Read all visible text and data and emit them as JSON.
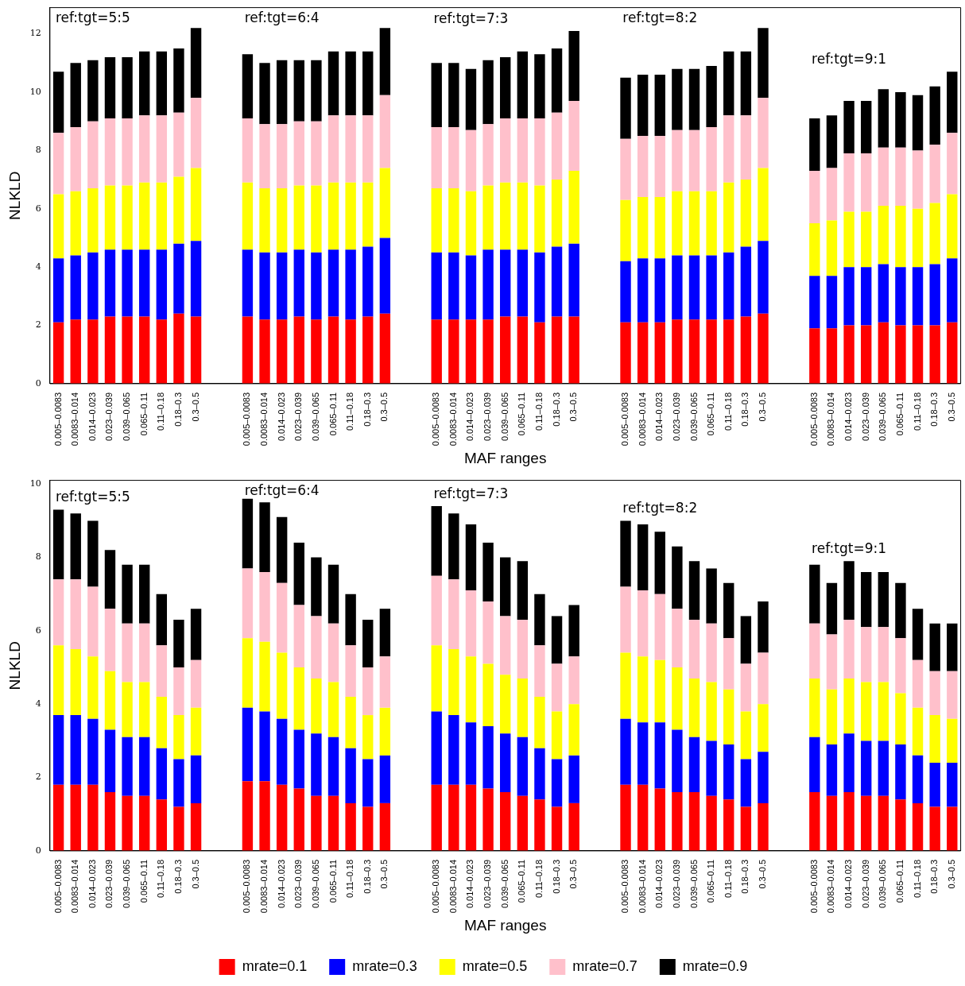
{
  "chart_data": [
    {
      "type": "bar",
      "stacked": true,
      "xlabel": "MAF ranges",
      "ylabel": "NLKLD",
      "ylim": [
        0,
        12.9
      ],
      "yticks": [
        0,
        2,
        4,
        6,
        8,
        10,
        12
      ],
      "grid": false,
      "legend": false,
      "annotations": [
        "ref:tgt=5:5",
        "ref:tgt=6:4",
        "ref:tgt=7:3",
        "ref:tgt=8:2",
        "ref:tgt=9:1"
      ],
      "categories": [
        "0.005–0.0083",
        "0.0083–0.014",
        "0.014–0.023",
        "0.023–0.039",
        "0.039–0.065",
        "0.065–0.11",
        "0.11–0.18",
        "0.18–0.3",
        "0.3–0.5",
        null,
        null,
        "0.005–0.0083",
        "0.0083–0.014",
        "0.014–0.023",
        "0.023–0.039",
        "0.039–0.065",
        "0.065–0.11",
        "0.11–0.18",
        "0.18–0.3",
        "0.3–0.5",
        null,
        null,
        "0.005–0.0083",
        "0.0083–0.014",
        "0.014–0.023",
        "0.023–0.039",
        "0.039–0.065",
        "0.065–0.11",
        "0.11–0.18",
        "0.18–0.3",
        "0.3–0.5",
        null,
        null,
        "0.005–0.0083",
        "0.0083–0.014",
        "0.014–0.023",
        "0.023–0.039",
        "0.039–0.065",
        "0.065–0.11",
        "0.11–0.18",
        "0.18–0.3",
        "0.3–0.5",
        null,
        null,
        "0.005–0.0083",
        "0.0083–0.014",
        "0.014–0.023",
        "0.023–0.039",
        "0.039–0.065",
        "0.065–0.11",
        "0.11–0.18",
        "0.18–0.3",
        "0.3–0.5"
      ],
      "series": [
        {
          "color": "#ff0000",
          "values": [
            2.1,
            2.2,
            2.2,
            2.3,
            2.3,
            2.3,
            2.2,
            2.4,
            2.3,
            null,
            null,
            2.3,
            2.2,
            2.2,
            2.3,
            2.2,
            2.3,
            2.2,
            2.3,
            2.4,
            null,
            null,
            2.2,
            2.2,
            2.2,
            2.2,
            2.3,
            2.3,
            2.1,
            2.3,
            2.3,
            null,
            null,
            2.1,
            2.1,
            2.1,
            2.2,
            2.2,
            2.2,
            2.2,
            2.3,
            2.4,
            null,
            null,
            1.9,
            1.9,
            2.0,
            2.0,
            2.1,
            2.0,
            2.0,
            2.0,
            2.1
          ]
        },
        {
          "color": "#0000ff",
          "values": [
            2.2,
            2.2,
            2.3,
            2.3,
            2.3,
            2.3,
            2.4,
            2.4,
            2.6,
            null,
            null,
            2.3,
            2.3,
            2.3,
            2.3,
            2.3,
            2.3,
            2.4,
            2.4,
            2.6,
            null,
            null,
            2.3,
            2.3,
            2.2,
            2.4,
            2.3,
            2.3,
            2.4,
            2.4,
            2.5,
            null,
            null,
            2.1,
            2.2,
            2.2,
            2.2,
            2.2,
            2.2,
            2.3,
            2.4,
            2.5,
            null,
            null,
            1.8,
            1.8,
            2.0,
            2.0,
            2.0,
            2.0,
            2.0,
            2.1,
            2.2
          ]
        },
        {
          "color": "#ffff00",
          "values": [
            2.2,
            2.2,
            2.2,
            2.2,
            2.2,
            2.3,
            2.3,
            2.3,
            2.5,
            null,
            null,
            2.3,
            2.2,
            2.2,
            2.2,
            2.3,
            2.3,
            2.3,
            2.2,
            2.4,
            null,
            null,
            2.2,
            2.2,
            2.2,
            2.2,
            2.3,
            2.3,
            2.3,
            2.3,
            2.5,
            null,
            null,
            2.1,
            2.1,
            2.1,
            2.2,
            2.2,
            2.2,
            2.4,
            2.3,
            2.5,
            null,
            null,
            1.8,
            1.9,
            1.9,
            1.9,
            2.0,
            2.1,
            2.0,
            2.1,
            2.2
          ]
        },
        {
          "color": "#ffc0cb",
          "values": [
            2.1,
            2.2,
            2.3,
            2.3,
            2.3,
            2.3,
            2.3,
            2.2,
            2.4,
            null,
            null,
            2.2,
            2.2,
            2.2,
            2.2,
            2.2,
            2.3,
            2.3,
            2.3,
            2.5,
            null,
            null,
            2.1,
            2.1,
            2.1,
            2.1,
            2.2,
            2.2,
            2.3,
            2.3,
            2.4,
            null,
            null,
            2.1,
            2.1,
            2.1,
            2.1,
            2.1,
            2.2,
            2.3,
            2.2,
            2.4,
            null,
            null,
            1.8,
            1.8,
            2.0,
            2.0,
            2.0,
            2.0,
            2.0,
            2.0,
            2.1
          ]
        },
        {
          "color": "#000000",
          "values": [
            2.1,
            2.2,
            2.1,
            2.1,
            2.1,
            2.2,
            2.2,
            2.2,
            2.4,
            null,
            null,
            2.2,
            2.1,
            2.2,
            2.1,
            2.1,
            2.2,
            2.2,
            2.2,
            2.3,
            null,
            null,
            2.2,
            2.2,
            2.1,
            2.2,
            2.1,
            2.3,
            2.2,
            2.2,
            2.4,
            null,
            null,
            2.1,
            2.1,
            2.1,
            2.1,
            2.1,
            2.1,
            2.2,
            2.2,
            2.4,
            null,
            null,
            1.8,
            1.8,
            1.8,
            1.8,
            2.0,
            1.9,
            1.9,
            2.0,
            2.1
          ]
        }
      ]
    },
    {
      "type": "bar",
      "stacked": true,
      "xlabel": "MAF ranges",
      "ylabel": "NLKLD",
      "ylim": [
        0,
        10.1
      ],
      "yticks": [
        0,
        2,
        4,
        6,
        8,
        10
      ],
      "grid": false,
      "legend": "bottom",
      "annotations": [
        "ref:tgt=5:5",
        "ref:tgt=6:4",
        "ref:tgt=7:3",
        "ref:tgt=8:2",
        "ref:tgt=9:1"
      ],
      "categories": [
        "0.005–0.0083",
        "0.0083–0.014",
        "0.014–0.023",
        "0.023–0.039",
        "0.039–0.065",
        "0.065–0.11",
        "0.11–0.18",
        "0.18–0.3",
        "0.3–0.5",
        null,
        null,
        "0.005–0.0083",
        "0.0083–0.014",
        "0.014–0.023",
        "0.023–0.039",
        "0.039–0.065",
        "0.065–0.11",
        "0.11–0.18",
        "0.18–0.3",
        "0.3–0.5",
        null,
        null,
        "0.005–0.0083",
        "0.0083–0.014",
        "0.014–0.023",
        "0.023–0.039",
        "0.039–0.065",
        "0.065–0.11",
        "0.11–0.18",
        "0.18–0.3",
        "0.3–0.5",
        null,
        null,
        "0.005–0.0083",
        "0.0083–0.014",
        "0.014–0.023",
        "0.023–0.039",
        "0.039–0.065",
        "0.065–0.11",
        "0.11–0.18",
        "0.18–0.3",
        "0.3–0.5",
        null,
        null,
        "0.005–0.0083",
        "0.0083–0.014",
        "0.014–0.023",
        "0.023–0.039",
        "0.039–0.065",
        "0.065–0.11",
        "0.11–0.18",
        "0.18–0.3",
        "0.3–0.5"
      ],
      "series": [
        {
          "name": "mrate=0.1",
          "color": "#ff0000",
          "values": [
            1.8,
            1.8,
            1.8,
            1.6,
            1.5,
            1.5,
            1.4,
            1.2,
            1.3,
            null,
            null,
            1.9,
            1.9,
            1.8,
            1.7,
            1.5,
            1.5,
            1.3,
            1.2,
            1.3,
            null,
            null,
            1.8,
            1.8,
            1.8,
            1.7,
            1.6,
            1.5,
            1.4,
            1.2,
            1.3,
            null,
            null,
            1.8,
            1.8,
            1.7,
            1.6,
            1.6,
            1.5,
            1.4,
            1.2,
            1.3,
            null,
            null,
            1.6,
            1.5,
            1.6,
            1.5,
            1.5,
            1.4,
            1.3,
            1.2,
            1.2
          ]
        },
        {
          "name": "mrate=0.3",
          "color": "#0000ff",
          "values": [
            1.9,
            1.9,
            1.8,
            1.7,
            1.6,
            1.6,
            1.4,
            1.3,
            1.3,
            null,
            null,
            2.0,
            1.9,
            1.8,
            1.6,
            1.7,
            1.6,
            1.5,
            1.3,
            1.3,
            null,
            null,
            2.0,
            1.9,
            1.7,
            1.7,
            1.6,
            1.6,
            1.4,
            1.3,
            1.3,
            null,
            null,
            1.8,
            1.7,
            1.8,
            1.7,
            1.5,
            1.5,
            1.5,
            1.3,
            1.4,
            null,
            null,
            1.5,
            1.4,
            1.6,
            1.5,
            1.5,
            1.5,
            1.3,
            1.2,
            1.2
          ]
        },
        {
          "name": "mrate=0.5",
          "color": "#ffff00",
          "values": [
            1.9,
            1.8,
            1.7,
            1.6,
            1.5,
            1.5,
            1.4,
            1.2,
            1.3,
            null,
            null,
            1.9,
            1.9,
            1.8,
            1.7,
            1.5,
            1.5,
            1.4,
            1.2,
            1.3,
            null,
            null,
            1.8,
            1.8,
            1.8,
            1.7,
            1.6,
            1.6,
            1.4,
            1.3,
            1.4,
            null,
            null,
            1.8,
            1.8,
            1.7,
            1.7,
            1.6,
            1.6,
            1.5,
            1.3,
            1.3,
            null,
            null,
            1.6,
            1.5,
            1.5,
            1.6,
            1.6,
            1.4,
            1.3,
            1.3,
            1.2
          ]
        },
        {
          "name": "mrate=0.7",
          "color": "#ffc0cb",
          "values": [
            1.8,
            1.9,
            1.9,
            1.7,
            1.6,
            1.6,
            1.4,
            1.3,
            1.3,
            null,
            null,
            1.9,
            1.9,
            1.9,
            1.7,
            1.7,
            1.6,
            1.4,
            1.3,
            1.4,
            null,
            null,
            1.9,
            1.9,
            1.8,
            1.7,
            1.6,
            1.6,
            1.4,
            1.3,
            1.3,
            null,
            null,
            1.8,
            1.8,
            1.8,
            1.6,
            1.6,
            1.6,
            1.4,
            1.3,
            1.4,
            null,
            null,
            1.5,
            1.5,
            1.6,
            1.5,
            1.5,
            1.5,
            1.3,
            1.2,
            1.3
          ]
        },
        {
          "name": "mrate=0.9",
          "color": "#000000",
          "values": [
            1.9,
            1.8,
            1.8,
            1.6,
            1.6,
            1.6,
            1.4,
            1.3,
            1.4,
            null,
            null,
            1.9,
            1.9,
            1.8,
            1.7,
            1.6,
            1.6,
            1.4,
            1.3,
            1.3,
            null,
            null,
            1.9,
            1.8,
            1.8,
            1.6,
            1.6,
            1.6,
            1.4,
            1.3,
            1.4,
            null,
            null,
            1.8,
            1.8,
            1.7,
            1.7,
            1.6,
            1.5,
            1.5,
            1.3,
            1.4,
            null,
            null,
            1.6,
            1.4,
            1.6,
            1.5,
            1.5,
            1.5,
            1.4,
            1.3,
            1.3
          ]
        }
      ]
    }
  ]
}
